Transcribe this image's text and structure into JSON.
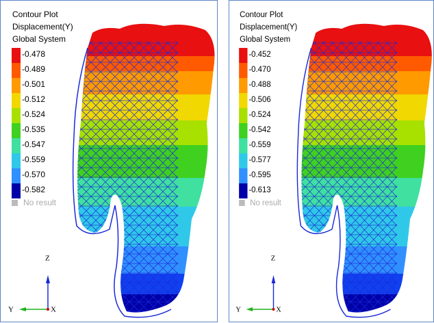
{
  "panels": [
    {
      "title_lines": [
        "Contour Plot",
        "Displacement(Y)",
        "Global System"
      ],
      "legend": [
        "-0.478",
        "-0.489",
        "-0.501",
        "-0.512",
        "-0.524",
        "-0.535",
        "-0.547",
        "-0.559",
        "-0.570",
        "-0.582"
      ],
      "no_result": "No result",
      "axes": {
        "z": "Z",
        "y": "Y",
        "x": "X"
      }
    },
    {
      "title_lines": [
        "Contour Plot",
        "Displacement(Y)",
        "Global System"
      ],
      "legend": [
        "-0.452",
        "-0.470",
        "-0.488",
        "-0.506",
        "-0.524",
        "-0.542",
        "-0.559",
        "-0.577",
        "-0.595",
        "-0.613"
      ],
      "no_result": "No result",
      "axes": {
        "z": "Z",
        "y": "Y",
        "x": "X"
      }
    }
  ]
}
